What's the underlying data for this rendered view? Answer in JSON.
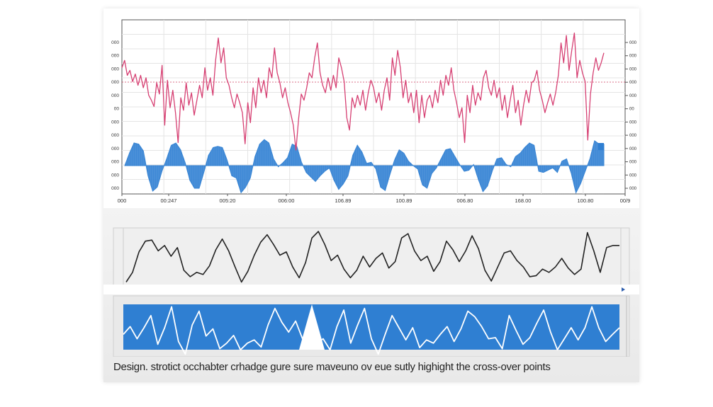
{
  "caption": "Design. strotict occhabter crhadge gure sure maveuno ov eue sutly highight the cross-over points",
  "colors": {
    "signal_red": "#d63f72",
    "band_blue": "#2f7fd2",
    "wave_black": "#222222",
    "grid": "#e4e4e4"
  },
  "chart_data": [
    {
      "type": "line",
      "panel": "top",
      "title": "",
      "xlabel": "",
      "ylabel": "",
      "y_tick_labels": [
        "000",
        "000",
        "000",
        "000",
        "000",
        "00",
        "000",
        "000",
        "000",
        "000",
        "000",
        "000"
      ],
      "x_tick_labels": [
        "000",
        "00:247",
        "005:20",
        "006:00",
        "106.89",
        "100.89",
        "006.80",
        "168.00",
        "100.80",
        "00/9"
      ],
      "grid": true,
      "series": [
        {
          "color": "#d63f72",
          "values": [
            0.66,
            0.72,
            0.6,
            0.64,
            0.55,
            0.61,
            0.52,
            0.6,
            0.5,
            0.58,
            0.44,
            0.4,
            0.35,
            0.54,
            0.45,
            0.68,
            0.2,
            0.56,
            0.34,
            0.48,
            0.3,
            0.06,
            0.42,
            0.32,
            0.54,
            0.36,
            0.46,
            0.28,
            0.4,
            0.52,
            0.42,
            0.66,
            0.48,
            0.58,
            0.44,
            0.72,
            0.9,
            0.7,
            0.82,
            0.58,
            0.52,
            0.42,
            0.34,
            0.45,
            0.38,
            0.3,
            0.05,
            0.38,
            0.22,
            0.5,
            0.34,
            0.58,
            0.46,
            0.56,
            0.42,
            0.66,
            0.58,
            0.82,
            0.62,
            0.54,
            0.42,
            0.5,
            0.38,
            0.3,
            0.2,
            0.0,
            0.25,
            0.45,
            0.4,
            0.5,
            0.62,
            0.58,
            0.74,
            0.86,
            0.62,
            0.52,
            0.46,
            0.58,
            0.48,
            0.6,
            0.5,
            0.74,
            0.66,
            0.55,
            0.26,
            0.16,
            0.42,
            0.34,
            0.44,
            0.36,
            0.48,
            0.32,
            0.46,
            0.56,
            0.5,
            0.38,
            0.46,
            0.32,
            0.48,
            0.58,
            0.4,
            0.74,
            0.6,
            0.8,
            0.66,
            0.42,
            0.56,
            0.38,
            0.46,
            0.3,
            0.48,
            0.22,
            0.44,
            0.26,
            0.4,
            0.44,
            0.34,
            0.48,
            0.38,
            0.56,
            0.44,
            0.6,
            0.52,
            0.66,
            0.48,
            0.38,
            0.26,
            0.34,
            0.06,
            0.44,
            0.3,
            0.52,
            0.36,
            0.46,
            0.4,
            0.58,
            0.64,
            0.5,
            0.44,
            0.56,
            0.42,
            0.5,
            0.32,
            0.44,
            0.26,
            0.4,
            0.52,
            0.3,
            0.4,
            0.2,
            0.36,
            0.48,
            0.38,
            0.54,
            0.56,
            0.64,
            0.48,
            0.4,
            0.3,
            0.38,
            0.45,
            0.36,
            0.46,
            0.6,
            0.86,
            0.7,
            0.92,
            0.64,
            0.8,
            0.94,
            0.58,
            0.72,
            0.62,
            0.55,
            0.08,
            0.45,
            0.62,
            0.74,
            0.64,
            0.7,
            0.78
          ]
        },
        {
          "color": "#2f7fd2",
          "type": "area",
          "baseline": 0.5,
          "values": [
            0.5,
            0.72,
            0.9,
            0.88,
            0.76,
            0.32,
            0.05,
            0.12,
            0.4,
            0.62,
            0.86,
            0.9,
            0.78,
            0.55,
            0.24,
            0.1,
            0.1,
            0.38,
            0.68,
            0.82,
            0.84,
            0.82,
            0.6,
            0.32,
            0.28,
            0.02,
            0.12,
            0.28,
            0.66,
            0.88,
            0.96,
            0.9,
            0.62,
            0.48,
            0.55,
            0.64,
            0.88,
            0.84,
            0.56,
            0.38,
            0.3,
            0.22,
            0.32,
            0.4,
            0.46,
            0.24,
            0.08,
            0.18,
            0.32,
            0.68,
            0.86,
            0.74,
            0.54,
            0.56,
            0.44,
            0.12,
            0.06,
            0.34,
            0.6,
            0.78,
            0.72,
            0.58,
            0.5,
            0.44,
            0.16,
            0.1,
            0.36,
            0.46,
            0.62,
            0.78,
            0.8,
            0.66,
            0.52,
            0.4,
            0.42,
            0.52,
            0.26,
            0.04,
            0.14,
            0.4,
            0.62,
            0.64,
            0.52,
            0.48,
            0.66,
            0.72,
            0.82,
            0.9,
            0.86,
            0.4,
            0.38,
            0.42,
            0.46,
            0.38,
            0.58,
            0.62,
            0.36,
            0.02,
            0.18,
            0.4,
            0.62,
            0.94,
            0.88,
            0.88
          ]
        }
      ]
    },
    {
      "type": "line",
      "panel": "middle",
      "title": "",
      "series": [
        {
          "color": "#222222",
          "values": [
            0.02,
            0.2,
            0.58,
            0.78,
            0.8,
            0.6,
            0.7,
            0.5,
            0.66,
            0.24,
            0.12,
            0.2,
            0.16,
            0.32,
            0.62,
            0.82,
            0.6,
            0.3,
            0.02,
            0.22,
            0.52,
            0.76,
            0.9,
            0.72,
            0.52,
            0.58,
            0.3,
            0.1,
            0.38,
            0.84,
            0.96,
            0.72,
            0.42,
            0.52,
            0.26,
            0.1,
            0.24,
            0.5,
            0.3,
            0.46,
            0.56,
            0.28,
            0.4,
            0.84,
            0.92,
            0.6,
            0.42,
            0.5,
            0.22,
            0.4,
            0.78,
            0.62,
            0.4,
            0.6,
            0.88,
            0.64,
            0.24,
            0.04,
            0.3,
            0.56,
            0.6,
            0.42,
            0.3,
            0.12,
            0.14,
            0.26,
            0.2,
            0.3,
            0.46,
            0.28,
            0.16,
            0.26,
            0.94,
            0.6,
            0.2,
            0.66,
            0.7,
            0.7
          ]
        }
      ]
    },
    {
      "type": "line",
      "panel": "bottom",
      "title": "",
      "series": [
        {
          "color": "#ffffff",
          "values": [
            0.38,
            0.52,
            0.3,
            0.5,
            0.72,
            0.2,
            0.5,
            0.88,
            0.25,
            0.02,
            0.55,
            0.8,
            0.35,
            0.48,
            0.12,
            0.22,
            0.36,
            0.1,
            0.22,
            0.28,
            0.15,
            0.55,
            0.85,
            0.6,
            0.42,
            0.62,
            0.3,
            0.12,
            0.2,
            0.3,
            0.1,
            0.52,
            0.82,
            0.22,
            0.55,
            0.85,
            0.3,
            0.02,
            0.38,
            0.72,
            0.5,
            0.28,
            0.5,
            0.14,
            0.28,
            0.22,
            0.38,
            0.52,
            0.25,
            0.48,
            0.8,
            0.7,
            0.52,
            0.3,
            0.32,
            0.12,
            0.72,
            0.45,
            0.2,
            0.32,
            0.58,
            0.82,
            0.42,
            0.1,
            0.3,
            0.5,
            0.28,
            0.5,
            0.88,
            0.5,
            0.25,
            0.38,
            0.5
          ]
        }
      ]
    }
  ]
}
